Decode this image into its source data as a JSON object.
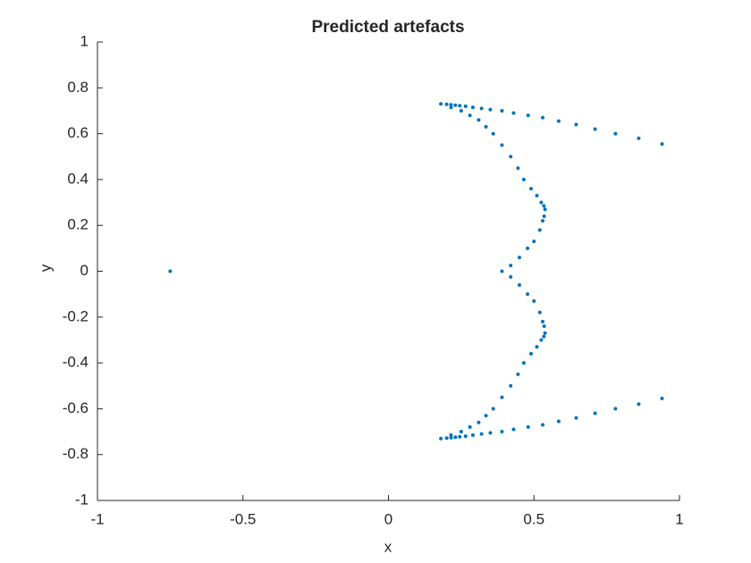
{
  "chart_data": {
    "type": "scatter",
    "title": "Predicted artefacts",
    "x_label": "x",
    "y_label": "y",
    "color": "#0072bd",
    "x": [
      -0.75,
      0.94,
      0.86,
      0.78,
      0.71,
      0.645,
      0.585,
      0.53,
      0.48,
      0.43,
      0.39,
      0.35,
      0.32,
      0.29,
      0.265,
      0.245,
      0.23,
      0.215,
      0.2,
      0.18,
      0.215,
      0.25,
      0.28,
      0.31,
      0.335,
      0.36,
      0.39,
      0.42,
      0.445,
      0.465,
      0.49,
      0.51,
      0.525,
      0.534,
      0.538,
      0.535,
      0.53,
      0.52,
      0.5,
      0.478,
      0.45,
      0.42,
      0.39,
      0.42,
      0.45,
      0.478,
      0.5,
      0.52,
      0.53,
      0.535,
      0.538,
      0.534,
      0.525,
      0.51,
      0.49,
      0.465,
      0.445,
      0.42,
      0.39,
      0.36,
      0.335,
      0.31,
      0.28,
      0.25,
      0.215,
      0.18,
      0.2,
      0.215,
      0.23,
      0.245,
      0.265,
      0.29,
      0.32,
      0.35,
      0.39,
      0.43,
      0.48,
      0.53,
      0.585,
      0.645,
      0.71,
      0.78,
      0.86,
      0.94
    ],
    "values": [
      0,
      0.555,
      0.58,
      0.6,
      0.62,
      0.64,
      0.655,
      0.67,
      0.68,
      0.69,
      0.7,
      0.705,
      0.71,
      0.715,
      0.72,
      0.722,
      0.724,
      0.726,
      0.728,
      0.73,
      0.715,
      0.7,
      0.68,
      0.66,
      0.63,
      0.6,
      0.55,
      0.5,
      0.45,
      0.4,
      0.36,
      0.33,
      0.3,
      0.285,
      0.27,
      0.24,
      0.22,
      0.18,
      0.13,
      0.1,
      0.06,
      0.025,
      0,
      -0.025,
      -0.06,
      -0.1,
      -0.13,
      -0.18,
      -0.22,
      -0.24,
      -0.27,
      -0.285,
      -0.3,
      -0.33,
      -0.36,
      -0.4,
      -0.45,
      -0.5,
      -0.55,
      -0.6,
      -0.63,
      -0.66,
      -0.68,
      -0.7,
      -0.715,
      -0.73,
      -0.728,
      -0.726,
      -0.724,
      -0.722,
      -0.72,
      -0.715,
      -0.71,
      -0.705,
      -0.7,
      -0.69,
      -0.68,
      -0.67,
      -0.655,
      -0.64,
      -0.62,
      -0.6,
      -0.58,
      -0.555
    ],
    "xlim": [
      -1,
      1
    ],
    "xticks": [
      -1,
      -0.5,
      0,
      0.5,
      1
    ],
    "ylim": [
      -1,
      1
    ],
    "yticks": [
      -1,
      -0.8,
      -0.6,
      -0.4,
      -0.2,
      0,
      0.2,
      0.4,
      0.6,
      0.8,
      1
    ]
  }
}
